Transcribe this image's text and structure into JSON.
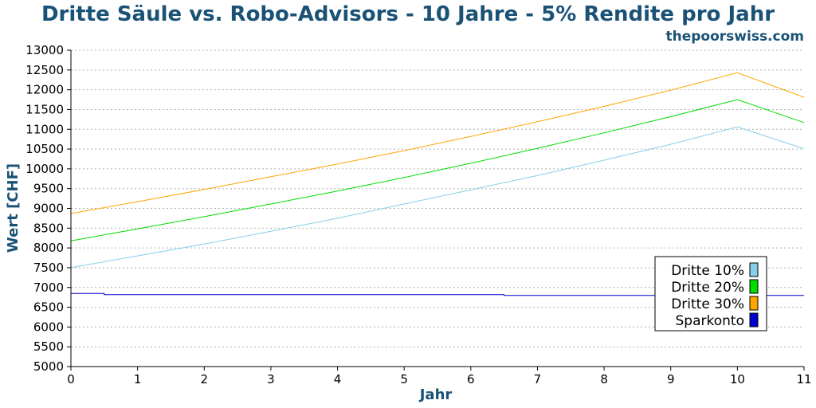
{
  "colors": {
    "title": "#1a5276",
    "grid": "#b0b0b0",
    "axis": "#000000"
  },
  "chart_data": {
    "type": "line",
    "title": "Dritte Säule vs. Robo-Advisors - 10 Jahre - 5% Rendite pro Jahr",
    "subtitle": "thepoorswiss.com",
    "xlabel": "Jahr",
    "ylabel": "Wert [CHF]",
    "xlim": [
      0,
      11
    ],
    "ylim": [
      5000,
      13000
    ],
    "xticks": [
      0,
      1,
      2,
      3,
      4,
      5,
      6,
      7,
      8,
      9,
      10,
      11
    ],
    "yticks": [
      5000,
      5500,
      6000,
      6500,
      7000,
      7500,
      8000,
      8500,
      9000,
      9500,
      10000,
      10500,
      11000,
      11500,
      12000,
      12500,
      13000
    ],
    "grid": "horizontal dotted",
    "legend_position": "lower-right",
    "series": [
      {
        "name": "Dritte 10%",
        "color": "#87ceeb",
        "x": [
          0,
          1,
          2,
          3,
          4,
          5,
          6,
          7,
          8,
          9,
          10,
          11
        ],
        "y": [
          7500,
          7800,
          8100,
          8420,
          8750,
          9110,
          9470,
          9830,
          10220,
          10620,
          11060,
          10510
        ]
      },
      {
        "name": "Dritte 20%",
        "color": "#00dd00",
        "x": [
          0,
          1,
          2,
          3,
          4,
          5,
          6,
          7,
          8,
          9,
          10,
          11
        ],
        "y": [
          8180,
          8480,
          8790,
          9110,
          9440,
          9780,
          10140,
          10520,
          10910,
          11320,
          11750,
          11170
        ]
      },
      {
        "name": "Dritte 30%",
        "color": "#ffa500",
        "x": [
          0,
          1,
          2,
          3,
          4,
          5,
          6,
          7,
          8,
          9,
          10,
          11
        ],
        "y": [
          8870,
          9170,
          9480,
          9800,
          10120,
          10460,
          10820,
          11190,
          11580,
          11990,
          12430,
          11810
        ]
      },
      {
        "name": "Sparkonto",
        "color": "#0000cc",
        "x": [
          0,
          0.5,
          0.5,
          6.5,
          6.5,
          11
        ],
        "y": [
          6850,
          6850,
          6820,
          6820,
          6800,
          6800
        ]
      }
    ]
  }
}
